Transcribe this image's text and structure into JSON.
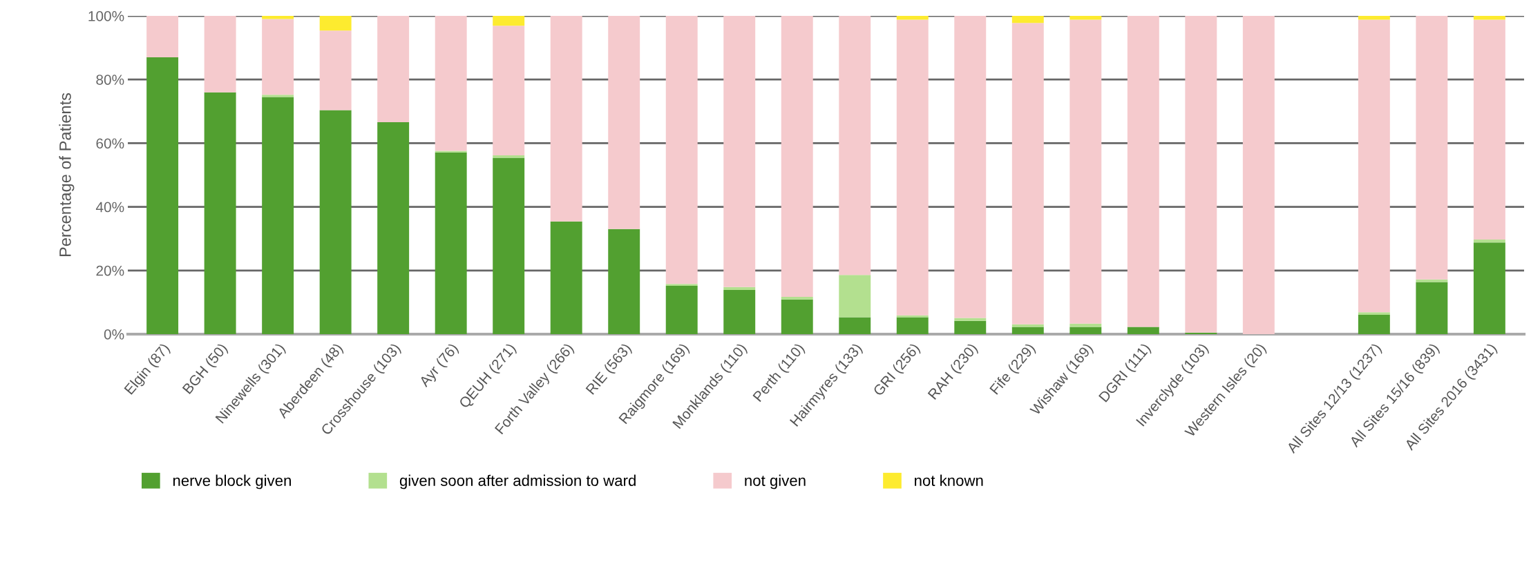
{
  "chart_data": {
    "type": "bar",
    "stacked": true,
    "ylabel": "Percentage of Patients",
    "categories": [
      "Elgin (87)",
      "BGH (50)",
      "Ninewells (301)",
      "Aberdeen (48)",
      "Crosshouse (103)",
      "Ayr (76)",
      "QEUH (271)",
      "Forth Valley (266)",
      "RIE (563)",
      "Raigmore (169)",
      "Monklands (110)",
      "Perth (110)",
      "Hairmyres (133)",
      "GRI (256)",
      "RAH (230)",
      "Fife (229)",
      "Wishaw (169)",
      "DGRI (111)",
      "Inverclyde (103)",
      "Western Isles (20)",
      null,
      "All Sites 12/13 (1237)",
      "All Sites 15/16 (839)",
      "All Sites 2016 (3431)"
    ],
    "series": [
      {
        "name": "nerve block given",
        "color": "#52a030",
        "values": [
          87,
          76,
          74.5,
          70.4,
          66.6,
          57.1,
          55.4,
          35.4,
          33,
          15.2,
          13.9,
          10.9,
          5.3,
          5.3,
          4.2,
          2.3,
          2.3,
          2.3,
          0.5,
          0,
          null,
          6.1,
          16.4,
          28.8
        ]
      },
      {
        "name": "given soon after admission to ward",
        "color": "#b3e08f",
        "values": [
          0,
          0,
          0.7,
          0,
          0,
          0.5,
          0.8,
          0,
          0,
          0.6,
          0.9,
          0.8,
          13.3,
          0.6,
          0.9,
          0.8,
          1,
          0,
          0,
          0,
          null,
          0.8,
          0.8,
          0.9
        ]
      },
      {
        "name": "not given",
        "color": "#f5cacd",
        "values": [
          13,
          24,
          23.8,
          25,
          33.4,
          42.4,
          40.7,
          64.6,
          67,
          84.2,
          85.2,
          88.3,
          81.4,
          92.9,
          94.9,
          94.7,
          95.5,
          97.7,
          99.5,
          100,
          null,
          91.9,
          82.8,
          69.1
        ]
      },
      {
        "name": "not known",
        "color": "#fdeb2f",
        "values": [
          0,
          0,
          1,
          4.6,
          0,
          0,
          3.1,
          0,
          0,
          0,
          0,
          0,
          0,
          1.2,
          0,
          2.2,
          1.2,
          0,
          0,
          0,
          null,
          1.2,
          0,
          1.2
        ]
      }
    ],
    "ylim": [
      0,
      100
    ],
    "yticks": [
      {
        "value": 0,
        "label": "0%"
      },
      {
        "value": 20,
        "label": "20%"
      },
      {
        "value": 40,
        "label": "40%"
      },
      {
        "value": 60,
        "label": "60%"
      },
      {
        "value": 80,
        "label": "80%"
      },
      {
        "value": 100,
        "label": "100%"
      }
    ],
    "grid": "y",
    "legend": "bottom"
  }
}
